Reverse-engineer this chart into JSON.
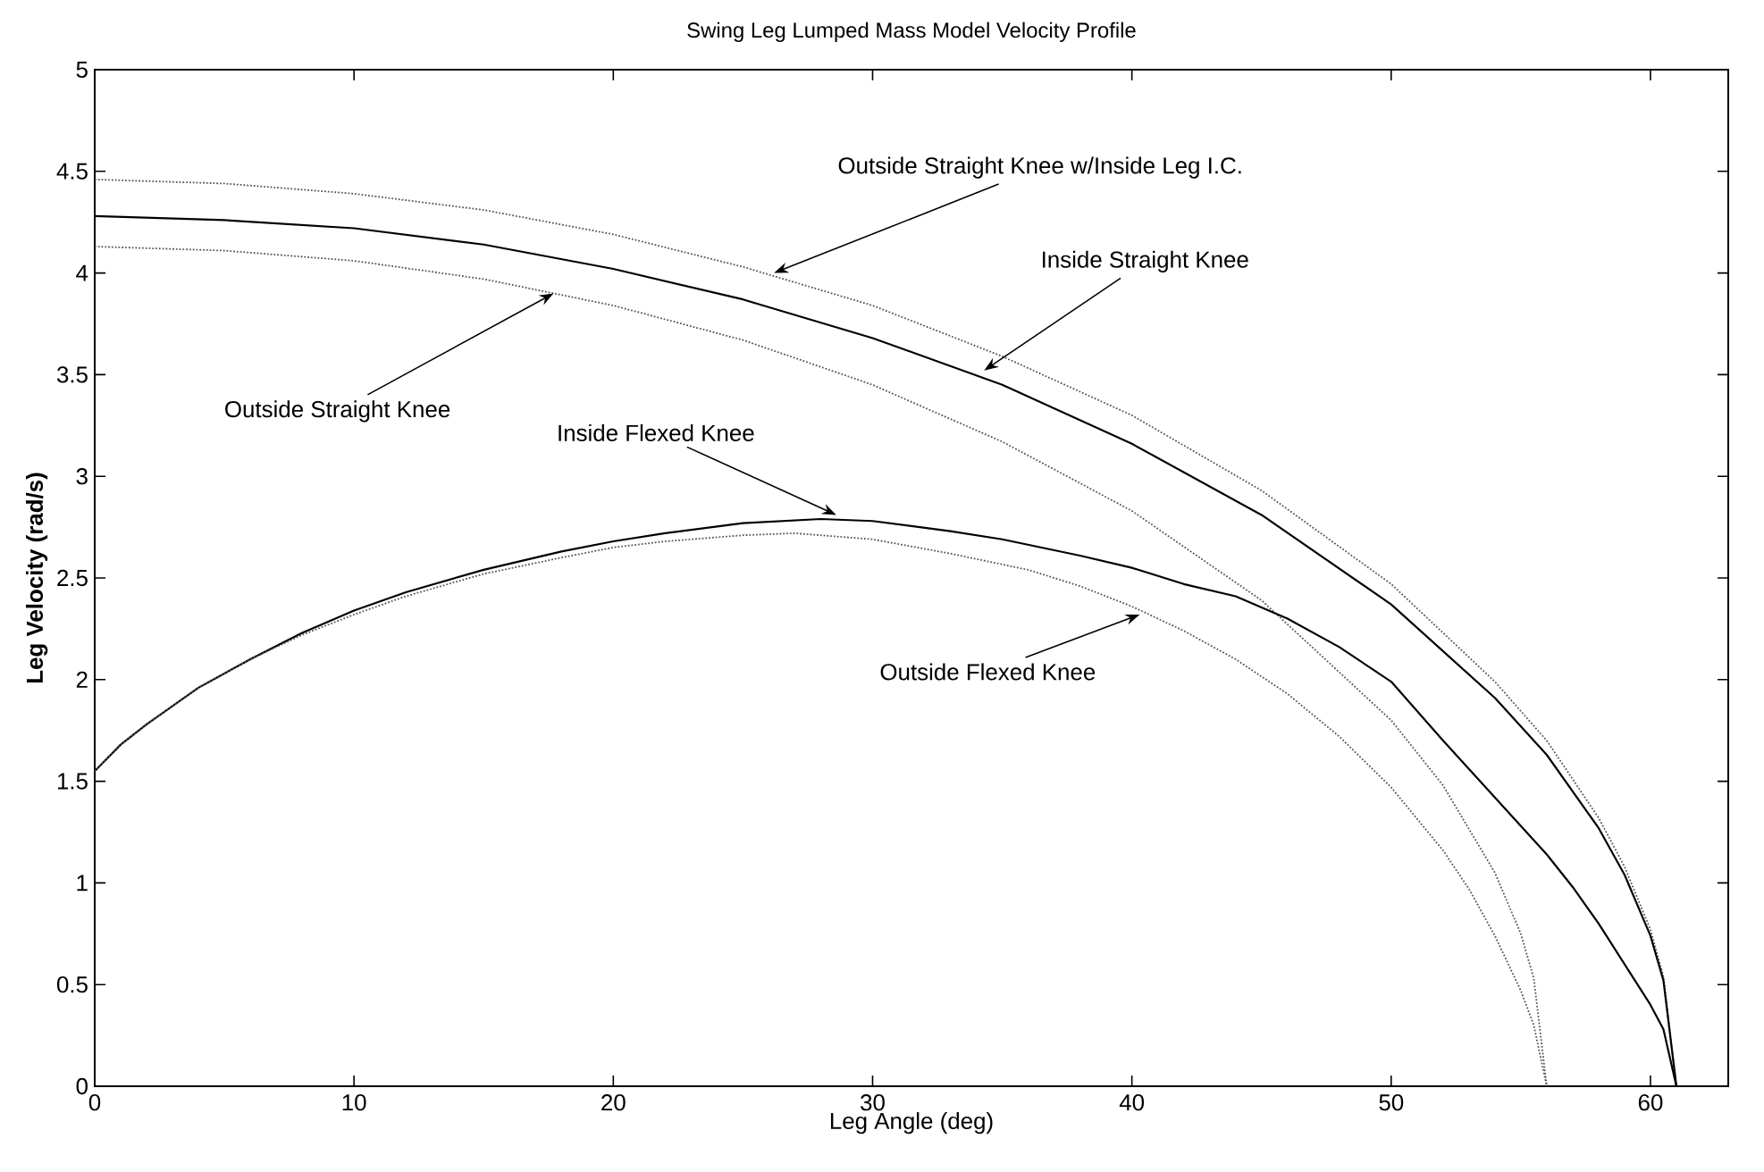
{
  "chart_data": {
    "type": "line",
    "title": "Swing Leg Lumped Mass Model Velocity Profile",
    "xlabel": "Leg Angle (deg)",
    "ylabel": "Leg Velocity (rad/s)",
    "xlim": [
      0,
      63
    ],
    "ylim": [
      0,
      5
    ],
    "xticks": [
      0,
      10,
      20,
      30,
      40,
      50,
      60
    ],
    "yticks": [
      0,
      0.5,
      1,
      1.5,
      2,
      2.5,
      3,
      3.5,
      4,
      4.5,
      5
    ],
    "series": [
      {
        "color": "#555555",
        "line_style": "dotted",
        "x": [
          0,
          5,
          10,
          15,
          20,
          25,
          30,
          35,
          40,
          45,
          50,
          54,
          56,
          58,
          59,
          60,
          60.5,
          61
        ],
        "values": [
          4.46,
          4.44,
          4.39,
          4.31,
          4.19,
          4.03,
          3.84,
          3.59,
          3.3,
          2.93,
          2.47,
          1.99,
          1.7,
          1.32,
          1.08,
          0.77,
          0.54,
          0
        ]
      },
      {
        "color": "#000000",
        "line_style": "solid",
        "x": [
          0,
          5,
          10,
          15,
          20,
          25,
          30,
          35,
          40,
          45,
          50,
          54,
          56,
          58,
          59,
          60,
          60.5,
          61
        ],
        "values": [
          4.28,
          4.26,
          4.22,
          4.14,
          4.02,
          3.87,
          3.68,
          3.45,
          3.16,
          2.81,
          2.37,
          1.91,
          1.63,
          1.27,
          1.04,
          0.74,
          0.52,
          0
        ]
      },
      {
        "color": "#555555",
        "line_style": "dotted",
        "x": [
          0,
          5,
          10,
          15,
          20,
          25,
          30,
          35,
          40,
          45,
          50,
          52,
          54,
          55,
          55.5,
          56
        ],
        "values": [
          4.13,
          4.11,
          4.06,
          3.97,
          3.84,
          3.67,
          3.45,
          3.17,
          2.83,
          2.39,
          1.8,
          1.48,
          1.05,
          0.75,
          0.53,
          0
        ]
      },
      {
        "color": "#000000",
        "line_style": "solid",
        "x": [
          0,
          1,
          2,
          4,
          6,
          8,
          10,
          12,
          15,
          18,
          20,
          22,
          25,
          28,
          30,
          33,
          35,
          38,
          40,
          42,
          44,
          46,
          48,
          50,
          52,
          54,
          56,
          57,
          58,
          59,
          60,
          60.5,
          61
        ],
        "values": [
          1.55,
          1.68,
          1.78,
          1.96,
          2.1,
          2.23,
          2.34,
          2.43,
          2.54,
          2.63,
          2.68,
          2.72,
          2.77,
          2.79,
          2.78,
          2.73,
          2.69,
          2.61,
          2.55,
          2.47,
          2.41,
          2.3,
          2.16,
          1.99,
          1.7,
          1.42,
          1.14,
          0.98,
          0.8,
          0.6,
          0.4,
          0.28,
          0
        ]
      },
      {
        "color": "#555555",
        "line_style": "dotted",
        "x": [
          0,
          1,
          2,
          4,
          6,
          8,
          10,
          12,
          15,
          18,
          20,
          22,
          25,
          27,
          30,
          33,
          36,
          38,
          40,
          42,
          44,
          46,
          48,
          50,
          52,
          53,
          54,
          55,
          55.5,
          56
        ],
        "values": [
          1.55,
          1.68,
          1.78,
          1.96,
          2.1,
          2.22,
          2.32,
          2.41,
          2.52,
          2.6,
          2.65,
          2.68,
          2.71,
          2.72,
          2.69,
          2.62,
          2.54,
          2.46,
          2.36,
          2.24,
          2.1,
          1.93,
          1.72,
          1.47,
          1.16,
          0.97,
          0.74,
          0.47,
          0.3,
          0
        ]
      }
    ],
    "annotations": [
      {
        "text": "Outside Straight Knee w/Inside Leg I.C.",
        "x": 26.2,
        "y": 4.0
      },
      {
        "text": "Inside Straight Knee",
        "x": 34.3,
        "y": 3.52
      },
      {
        "text": "Outside Straight Knee",
        "x": 17.7,
        "y": 3.9
      },
      {
        "text": "Inside Flexed Knee",
        "x": 28.6,
        "y": 2.81
      },
      {
        "text": "Outside Flexed Knee",
        "x": 40.3,
        "y": 2.32
      }
    ]
  }
}
